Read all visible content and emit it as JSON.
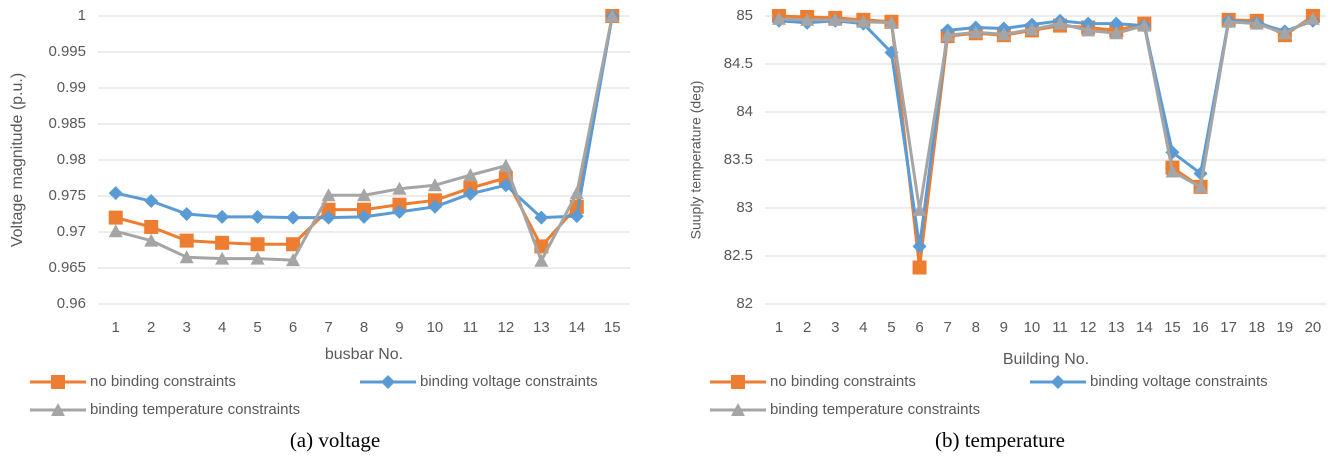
{
  "chart_data": [
    {
      "type": "line",
      "caption": "(a) voltage",
      "x_label": "busbar No.",
      "y_label": "Voltage magnitude (p.u.)",
      "categories": [
        "1",
        "2",
        "3",
        "4",
        "5",
        "6",
        "7",
        "8",
        "9",
        "10",
        "11",
        "12",
        "13",
        "14",
        "15"
      ],
      "ylim": [
        0.96,
        1
      ],
      "yticks": [
        0.96,
        0.965,
        0.97,
        0.975,
        0.98,
        0.985,
        0.99,
        0.995,
        1
      ],
      "grid": true,
      "series": [
        {
          "name": "no binding constraints",
          "color": "#ed7d31",
          "marker": "square",
          "values": [
            0.972,
            0.9707,
            0.9688,
            0.9685,
            0.9683,
            0.9683,
            0.9731,
            0.9731,
            0.9738,
            0.9744,
            0.9761,
            0.9775,
            0.968,
            0.9735,
            1
          ]
        },
        {
          "name": "binding voltage constraints",
          "color": "#5b9bd5",
          "marker": "diamond",
          "values": [
            0.9754,
            0.9743,
            0.9725,
            0.9721,
            0.9721,
            0.972,
            0.972,
            0.9721,
            0.9728,
            0.9735,
            0.9753,
            0.9765,
            0.972,
            0.9722,
            1
          ]
        },
        {
          "name": "binding temperature constraints",
          "color": "#a5a5a5",
          "marker": "triangle",
          "values": [
            0.9701,
            0.9688,
            0.9665,
            0.9663,
            0.9663,
            0.9661,
            0.9751,
            0.9751,
            0.976,
            0.9765,
            0.9779,
            0.9792,
            0.966,
            0.9754,
            1
          ]
        }
      ]
    },
    {
      "type": "line",
      "caption": "(b) temperature",
      "x_label": "Building No.",
      "y_label": "Suuply temperature (deg)",
      "categories": [
        "1",
        "2",
        "3",
        "4",
        "5",
        "6",
        "7",
        "8",
        "9",
        "10",
        "11",
        "12",
        "13",
        "14",
        "15",
        "16",
        "17",
        "18",
        "19",
        "20"
      ],
      "ylim": [
        82,
        85
      ],
      "yticks": [
        82,
        82.5,
        83,
        83.5,
        84,
        84.5,
        85
      ],
      "grid": true,
      "series": [
        {
          "name": "no binding constraints",
          "color": "#ed7d31",
          "marker": "square",
          "values": [
            85,
            84.99,
            84.98,
            84.96,
            84.94,
            82.38,
            84.79,
            84.82,
            84.8,
            84.85,
            84.9,
            84.88,
            84.85,
            84.92,
            83.42,
            83.22,
            84.96,
            84.95,
            84.8,
            85
          ]
        },
        {
          "name": "binding voltage constraints",
          "color": "#5b9bd5",
          "marker": "diamond",
          "values": [
            84.95,
            84.93,
            84.95,
            84.92,
            84.62,
            82.6,
            84.85,
            84.88,
            84.87,
            84.91,
            84.95,
            84.92,
            84.92,
            84.9,
            83.58,
            83.36,
            84.95,
            84.93,
            84.84,
            84.95
          ]
        },
        {
          "name": "binding temperature constraints",
          "color": "#a5a5a5",
          "marker": "triangle",
          "values": [
            84.97,
            84.96,
            84.96,
            84.94,
            84.93,
            82.98,
            84.8,
            84.83,
            84.81,
            84.86,
            84.92,
            84.85,
            84.82,
            84.9,
            83.38,
            83.22,
            84.94,
            84.92,
            84.82,
            84.97
          ]
        }
      ]
    }
  ]
}
